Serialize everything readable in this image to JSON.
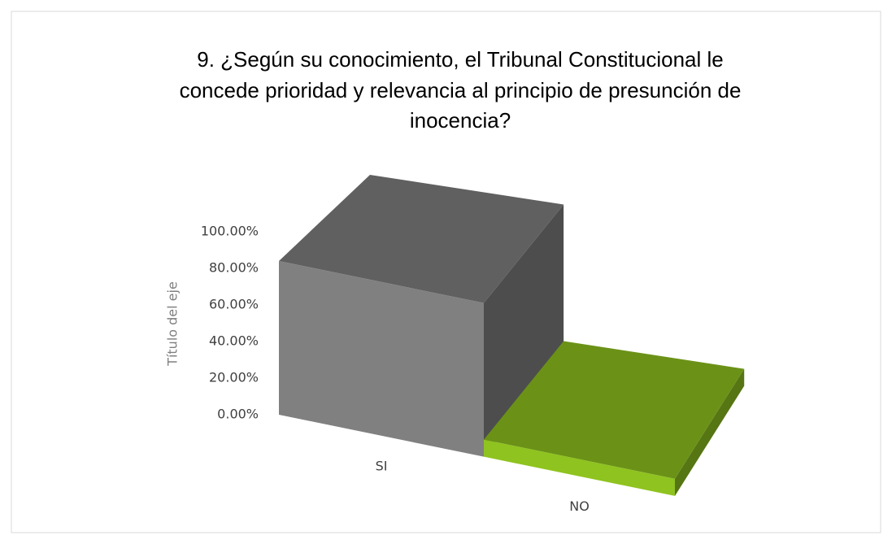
{
  "chart_data": {
    "type": "bar3d",
    "title_lines": [
      "9. ¿Según su conocimiento, el Tribunal Constitucional le",
      "concede prioridad y relevancia al principio de presunción de",
      "inocencia?"
    ],
    "y_axis_title": "Título del eje",
    "categories": [
      "SI",
      "NO"
    ],
    "values": [
      90,
      10
    ],
    "colors": [
      "#808080",
      "#8fc31f"
    ],
    "ylim": [
      0,
      100
    ],
    "yticks": [
      {
        "value": 0,
        "label": "0.00%"
      },
      {
        "value": 20,
        "label": "20.00%"
      },
      {
        "value": 40,
        "label": "40.00%"
      },
      {
        "value": 60,
        "label": "60.00%"
      },
      {
        "value": 80,
        "label": "80.00%"
      },
      {
        "value": 100,
        "label": "100.00%"
      }
    ]
  }
}
